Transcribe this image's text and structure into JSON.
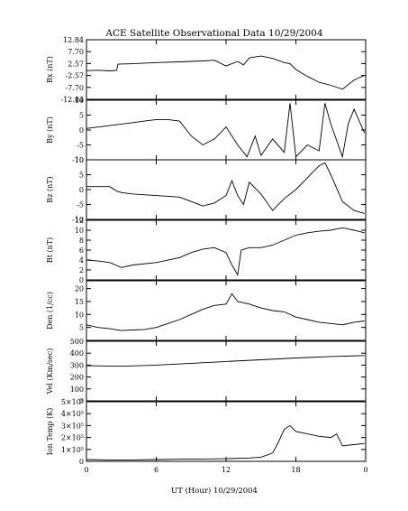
{
  "chart_data": {
    "type": "line",
    "title": "ACE Satellite Observational Data   10/29/2004",
    "xlabel": "UT (Hour)  10/29/2004",
    "x_ticks": [
      "0",
      "6",
      "12",
      "18",
      "0"
    ],
    "xlim": [
      0,
      24
    ],
    "panels": [
      {
        "ylabel": "Bx (nT)",
        "ylim": [
          -12.84,
          12.84
        ],
        "y_ticks": [
          "12.84",
          "7.70",
          "2.57",
          "-2.57",
          "-7.70",
          "-12.84"
        ],
        "x": [
          0,
          1,
          2,
          2.6,
          2.7,
          4,
          6,
          8,
          10,
          11,
          12,
          13,
          13.5,
          14,
          15,
          16,
          17,
          17.5,
          18,
          19,
          20,
          21,
          22,
          23,
          23.9
        ],
        "y": [
          -0.5,
          -0.3,
          -0.6,
          -0.4,
          2.3,
          2.5,
          3.0,
          3.3,
          3.7,
          4.0,
          1.5,
          3.5,
          2.0,
          5.0,
          5.8,
          4.8,
          3.0,
          2.5,
          0.0,
          -3.0,
          -5.5,
          -6.8,
          -8.5,
          -4.5,
          -2.5
        ]
      },
      {
        "ylabel": "By (nT)",
        "ylim": [
          -10,
          10
        ],
        "y_ticks": [
          "10",
          "5",
          "0",
          "-5",
          "-10"
        ],
        "x": [
          0,
          1,
          2,
          3,
          4,
          5,
          6,
          7,
          8,
          9,
          10,
          11,
          12,
          13,
          13.8,
          14.5,
          15,
          16,
          17,
          17.5,
          18,
          19,
          20,
          20.5,
          21,
          22,
          22.5,
          23,
          23.9
        ],
        "y": [
          0.5,
          1.0,
          1.5,
          2.0,
          2.5,
          3.0,
          3.5,
          3.5,
          3.0,
          -2.0,
          -5.0,
          -3.0,
          1.0,
          -5.0,
          -9.0,
          -2.0,
          -8.5,
          -3.0,
          -7.5,
          9.0,
          -9.0,
          -5.0,
          -7.0,
          9.0,
          2.0,
          -9.0,
          2.0,
          7.0,
          -1.0
        ]
      },
      {
        "ylabel": "Bz (nT)",
        "ylim": [
          -10,
          10
        ],
        "y_ticks": [
          "10",
          "5",
          "0",
          "-5",
          "-10"
        ],
        "x": [
          0,
          1,
          2,
          2.6,
          3,
          4,
          6,
          8,
          9,
          10,
          11,
          12,
          12.5,
          13,
          13.5,
          14,
          15,
          16,
          17,
          18,
          19,
          20,
          20.5,
          21,
          22,
          23,
          23.9
        ],
        "y": [
          1.0,
          1.0,
          1.0,
          -0.5,
          -1.0,
          -1.5,
          -2.0,
          -2.5,
          -4.0,
          -5.5,
          -4.5,
          -2.0,
          3.0,
          -2.0,
          -5.0,
          2.5,
          -1.5,
          -7.0,
          -3.0,
          0.0,
          4.0,
          8.0,
          9.0,
          5.0,
          -4.0,
          -7.0,
          -8.0
        ]
      },
      {
        "ylabel": "Bt (nT)",
        "ylim": [
          0,
          12
        ],
        "y_ticks": [
          "12",
          "10",
          "8",
          "6",
          "4",
          "2",
          "0"
        ],
        "x": [
          0,
          1,
          2,
          2.5,
          3,
          4,
          6,
          8,
          9,
          10,
          11,
          12,
          12.5,
          13,
          13.3,
          14,
          15,
          16,
          17,
          18,
          19,
          20,
          21,
          22,
          23,
          23.9
        ],
        "y": [
          4.0,
          3.8,
          3.5,
          3.0,
          2.5,
          3.0,
          3.5,
          4.5,
          5.5,
          6.2,
          6.5,
          5.5,
          3.0,
          1.0,
          6.0,
          6.5,
          6.5,
          7.0,
          8.0,
          9.0,
          9.5,
          9.8,
          10.0,
          10.5,
          10.0,
          9.5
        ]
      },
      {
        "ylabel": "Den (1/cc)",
        "ylim": [
          0,
          23
        ],
        "y_ticks": [
          "20",
          "15",
          "10",
          "5"
        ],
        "x": [
          0,
          1,
          2,
          3,
          4,
          5,
          6,
          7,
          8,
          9,
          10,
          11,
          12,
          12.5,
          13,
          14,
          15,
          16,
          17,
          18,
          19,
          20,
          21,
          22,
          23,
          23.9
        ],
        "y": [
          6.0,
          5.0,
          4.5,
          3.8,
          4.0,
          4.2,
          5.0,
          6.5,
          8.0,
          10.0,
          12.0,
          13.5,
          14.0,
          18.0,
          15.0,
          14.0,
          12.5,
          11.5,
          11.0,
          9.0,
          8.0,
          7.0,
          6.5,
          6.0,
          7.0,
          7.5
        ]
      },
      {
        "ylabel": "Vel (Km/sec)",
        "ylim": [
          0,
          500
        ],
        "y_ticks": [
          "500",
          "400",
          "300",
          "200",
          "100",
          "0"
        ],
        "x": [
          0,
          3,
          6,
          9,
          12,
          15,
          18,
          21,
          23.9
        ],
        "y": [
          295,
          290,
          300,
          315,
          330,
          345,
          360,
          372,
          380
        ]
      },
      {
        "ylabel": "Ion Temp (K)",
        "ylim": [
          0,
          500000
        ],
        "y_ticks": [
          "5×10⁵",
          "4×10⁵",
          "3×10⁵",
          "2×10⁵",
          "1×10⁵",
          "0"
        ],
        "x": [
          0,
          2,
          4,
          6,
          8,
          10,
          12,
          14,
          15,
          16,
          16.5,
          17,
          17.5,
          18,
          19,
          20,
          21,
          21.5,
          22,
          23,
          23.9
        ],
        "y": [
          15000,
          12000,
          12000,
          15000,
          18000,
          20000,
          22000,
          28000,
          35000,
          70000,
          160000,
          270000,
          300000,
          250000,
          230000,
          210000,
          200000,
          230000,
          130000,
          140000,
          150000
        ]
      }
    ]
  }
}
